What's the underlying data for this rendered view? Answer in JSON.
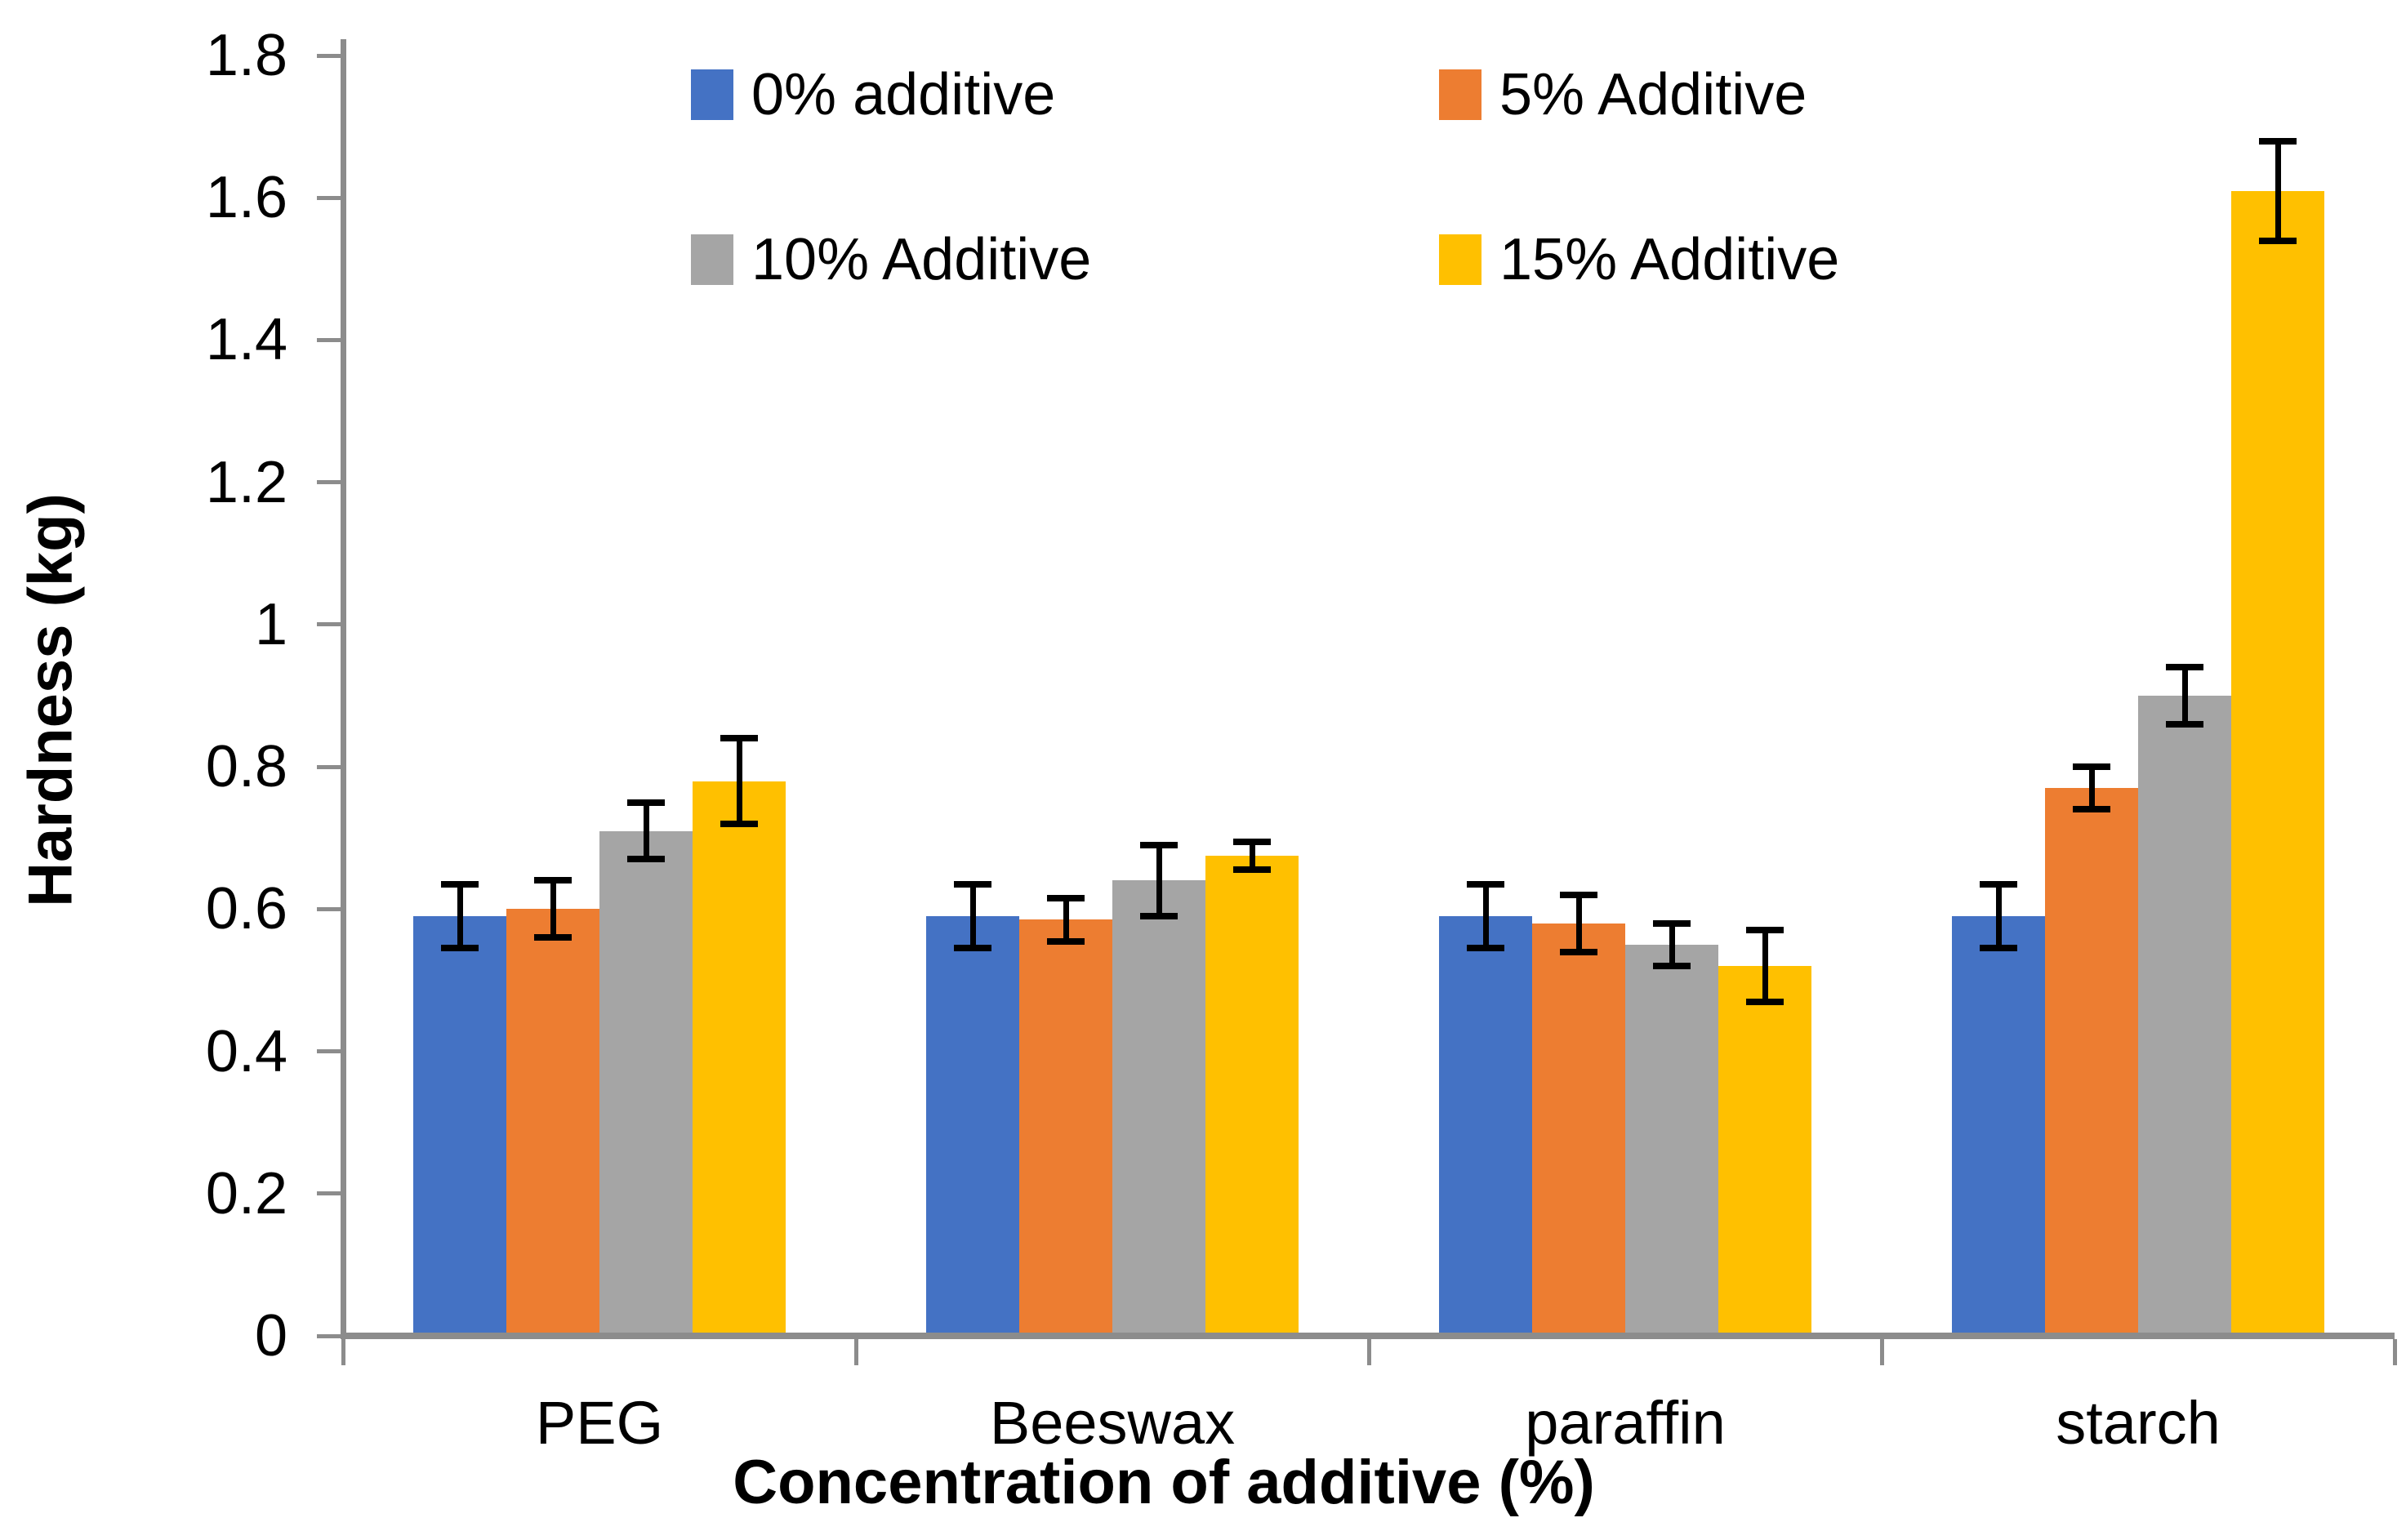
{
  "chart_data": {
    "type": "bar",
    "title": "",
    "xlabel": "Concentration of additive (%)",
    "ylabel": "Hardness (kg)",
    "categories": [
      "PEG",
      "Beeswax",
      "paraffin",
      "starch"
    ],
    "series": [
      {
        "name": "0% additive",
        "color": "#4472C4",
        "values": [
          0.59,
          0.59,
          0.59,
          0.59
        ],
        "errors": [
          0.045,
          0.045,
          0.045,
          0.045
        ]
      },
      {
        "name": "5% Additive",
        "color": "#ED7D31",
        "values": [
          0.6,
          0.585,
          0.58,
          0.77
        ],
        "errors": [
          0.04,
          0.03,
          0.04,
          0.03
        ]
      },
      {
        "name": "10% Additive",
        "color": "#A5A5A5",
        "values": [
          0.71,
          0.64,
          0.55,
          0.9
        ],
        "errors": [
          0.04,
          0.05,
          0.03,
          0.04
        ]
      },
      {
        "name": "15% Additive",
        "color": "#FFC000",
        "values": [
          0.78,
          0.675,
          0.52,
          1.61
        ],
        "errors": [
          0.06,
          0.02,
          0.05,
          0.07
        ]
      }
    ],
    "ylim": [
      0,
      1.8
    ],
    "yticks": [
      0,
      0.2,
      0.4,
      0.6,
      0.8,
      1,
      1.2,
      1.4,
      1.6,
      1.8
    ],
    "ytick_labels": [
      "0",
      "0.2",
      "0.4",
      "0.6",
      "0.8",
      "1",
      "1.2",
      "1.4",
      "1.6",
      "1.8"
    ],
    "grid": false,
    "legend_position": "top",
    "error_bars": true
  },
  "colors": {
    "axis_line": "#8C8C8C",
    "error_bar": "#000000",
    "text": "#000000",
    "background": "#FFFFFF"
  }
}
